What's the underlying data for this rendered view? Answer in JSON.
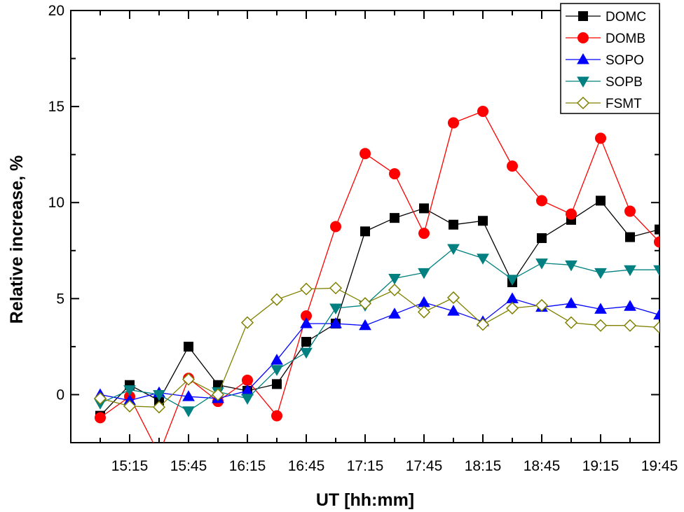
{
  "chart_data": {
    "type": "line",
    "title": "",
    "xlabel": "UT [hh:mm]",
    "ylabel": "Relative increase, %",
    "ylim": [
      -2.5,
      20
    ],
    "yticks": [
      0,
      5,
      10,
      15,
      20
    ],
    "xlim": [
      "14:45",
      "19:45"
    ],
    "xticks": [
      "15:15",
      "15:45",
      "16:15",
      "16:45",
      "17:15",
      "17:45",
      "18:15",
      "18:45",
      "19:15",
      "19:45"
    ],
    "grid": false,
    "legend_position": "top-right",
    "x": [
      "15:00",
      "15:15",
      "15:30",
      "15:45",
      "16:00",
      "16:15",
      "16:30",
      "16:45",
      "17:00",
      "17:15",
      "17:30",
      "17:45",
      "18:00",
      "18:15",
      "18:30",
      "18:45",
      "19:00",
      "19:15",
      "19:30",
      "19:45"
    ],
    "series": [
      {
        "name": "DOMC",
        "color": "#000000",
        "marker": "square",
        "values": [
          -1.1,
          0.5,
          -0.3,
          2.5,
          0.5,
          0.2,
          0.55,
          2.75,
          3.7,
          8.5,
          9.2,
          9.7,
          8.85,
          9.05,
          5.85,
          8.15,
          9.1,
          10.1,
          8.2,
          8.6
        ]
      },
      {
        "name": "DOMB",
        "color": "#ff0000",
        "marker": "circle",
        "values": [
          -1.2,
          -0.1,
          -3.1,
          0.85,
          -0.35,
          0.75,
          -1.1,
          4.1,
          8.75,
          12.55,
          11.5,
          8.4,
          14.15,
          14.75,
          11.9,
          10.1,
          9.4,
          13.35,
          9.55,
          7.95
        ]
      },
      {
        "name": "SOPO",
        "color": "#0000ff",
        "marker": "triangle-up",
        "values": [
          0.0,
          -0.3,
          0.1,
          -0.1,
          -0.2,
          0.2,
          1.8,
          3.7,
          3.7,
          3.6,
          4.2,
          4.8,
          4.35,
          3.8,
          5.0,
          4.55,
          4.75,
          4.45,
          4.6,
          4.15
        ]
      },
      {
        "name": "SOPB",
        "color": "#008080",
        "marker": "triangle-down",
        "values": [
          -0.45,
          0.25,
          0.0,
          -0.85,
          0.15,
          -0.2,
          1.3,
          2.2,
          4.5,
          4.65,
          6.05,
          6.35,
          7.6,
          7.1,
          6.0,
          6.85,
          6.75,
          6.35,
          6.5,
          6.5
        ]
      },
      {
        "name": "FSMT",
        "color": "#808000",
        "marker": "diamond-open",
        "values": [
          -0.2,
          -0.6,
          -0.65,
          0.8,
          0.0,
          3.75,
          4.95,
          5.5,
          5.55,
          4.75,
          5.45,
          4.3,
          5.05,
          3.65,
          4.5,
          4.65,
          3.75,
          3.6,
          3.6,
          3.5
        ]
      }
    ]
  }
}
